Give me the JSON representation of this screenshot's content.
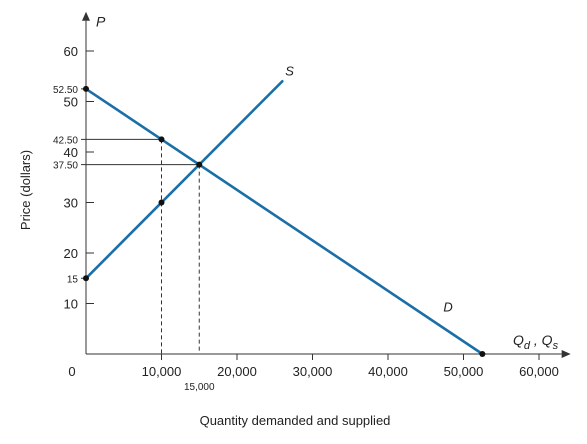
{
  "chart_data": {
    "type": "line",
    "xlabel": "Quantity demanded and supplied",
    "ylabel": "Price (dollars)",
    "x_axis_symbol_main": "Q",
    "x_axis_symbol_d": "d",
    "x_axis_symbol_sep": " , Q",
    "x_axis_symbol_s": "s",
    "y_axis_symbol": "P",
    "xlim": [
      0,
      63000
    ],
    "ylim": [
      0,
      66
    ],
    "x_ticks": [
      {
        "value": 0,
        "label": "0"
      },
      {
        "value": 10000,
        "label": "10,000"
      },
      {
        "value": 20000,
        "label": "20,000"
      },
      {
        "value": 30000,
        "label": "30,000"
      },
      {
        "value": 40000,
        "label": "40,000"
      },
      {
        "value": 50000,
        "label": "50,000"
      },
      {
        "value": 60000,
        "label": "60,000"
      }
    ],
    "y_ticks": [
      {
        "value": 10,
        "label": "10"
      },
      {
        "value": 20,
        "label": "20"
      },
      {
        "value": 30,
        "label": "30"
      },
      {
        "value": 40,
        "label": "40"
      },
      {
        "value": 50,
        "label": "50"
      },
      {
        "value": 60,
        "label": "60"
      }
    ],
    "extra_x_labels": [
      {
        "value": 15000,
        "label": "15,000"
      }
    ],
    "extra_y_labels": [
      {
        "value": 52.5,
        "label": "52.50"
      },
      {
        "value": 42.5,
        "label": "42.50"
      },
      {
        "value": 37.5,
        "label": "37.50"
      },
      {
        "value": 15,
        "label": "15"
      }
    ],
    "series": [
      {
        "name": "S",
        "color": "#1a6fa8",
        "x": [
          0,
          26000
        ],
        "y": [
          15,
          54
        ]
      },
      {
        "name": "D",
        "color": "#1a6fa8",
        "x": [
          0,
          52500
        ],
        "y": [
          52.5,
          0
        ]
      }
    ],
    "points": [
      {
        "x": 0,
        "y": 52.5
      },
      {
        "x": 10000,
        "y": 42.5
      },
      {
        "x": 15000,
        "y": 37.5
      },
      {
        "x": 10000,
        "y": 30
      },
      {
        "x": 0,
        "y": 15
      },
      {
        "x": 52500,
        "y": 0
      }
    ],
    "guide_lines": [
      {
        "from": [
          0,
          42.5
        ],
        "to": [
          10000,
          42.5
        ],
        "style": "solid"
      },
      {
        "from": [
          0,
          37.5
        ],
        "to": [
          15000,
          37.5
        ],
        "style": "solid"
      },
      {
        "from": [
          10000,
          42.5
        ],
        "to": [
          10000,
          0
        ],
        "style": "dashed"
      },
      {
        "from": [
          15000,
          37.5
        ],
        "to": [
          15000,
          0
        ],
        "style": "dashed"
      }
    ],
    "grid": false,
    "legend": "none"
  }
}
